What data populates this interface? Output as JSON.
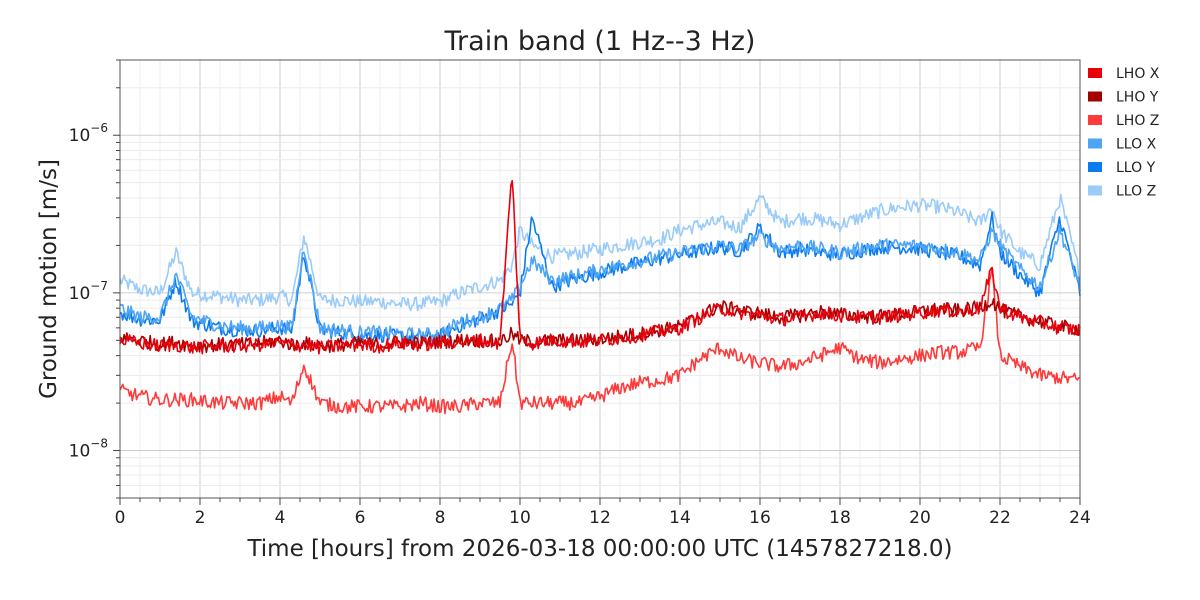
{
  "chart_data": {
    "type": "line",
    "title": "Train band (1 Hz--3 Hz)",
    "xlabel": "Time [hours] from 2026-03-18 00:00:00 UTC (1457827218.0)",
    "ylabel": "Ground motion [m/s]",
    "xlim": [
      0,
      24
    ],
    "ylim": [
      5e-09,
      3e-06
    ],
    "yscale": "log",
    "grid": true,
    "legend_position": "outside-right-top",
    "x_ticks": [
      "0",
      "2",
      "4",
      "6",
      "8",
      "10",
      "12",
      "14",
      "16",
      "18",
      "20",
      "22",
      "24"
    ],
    "y_ticks": [
      {
        "value": 1e-08,
        "base": "10",
        "exp": "−8"
      },
      {
        "value": 1e-07,
        "base": "10",
        "exp": "−7"
      },
      {
        "value": 1e-06,
        "base": "10",
        "exp": "−6"
      }
    ],
    "x": [
      0,
      0.5,
      1,
      1.4,
      1.8,
      2.5,
      3,
      3.5,
      4,
      4.3,
      4.6,
      5,
      5.5,
      6,
      6.5,
      7,
      7.5,
      8,
      8.5,
      9,
      9.5,
      9.8,
      10,
      10.3,
      10.8,
      11.5,
      12,
      12.5,
      13,
      13.5,
      14,
      14.5,
      15,
      15.5,
      16,
      16.5,
      17,
      17.5,
      18,
      18.5,
      19,
      19.5,
      20,
      20.5,
      21,
      21.5,
      21.8,
      22,
      22.5,
      23,
      23.5,
      24
    ],
    "series": [
      {
        "name": "LHO X",
        "color": "#e8000b",
        "values": [
          5e-08,
          4.8e-08,
          4.6e-08,
          4.7e-08,
          4.5e-08,
          4.6e-08,
          4.6e-08,
          4.7e-08,
          4.8e-08,
          4.6e-08,
          4.7e-08,
          4.5e-08,
          4.6e-08,
          4.7e-08,
          4.6e-08,
          4.8e-08,
          4.7e-08,
          4.8e-08,
          4.9e-08,
          5e-08,
          4.8e-08,
          6e-07,
          5e-08,
          4.8e-08,
          5e-08,
          4.9e-08,
          5e-08,
          5.2e-08,
          5.4e-08,
          5.7e-08,
          6e-08,
          7e-08,
          8e-08,
          7.5e-08,
          7.2e-08,
          6.8e-08,
          7e-08,
          7.5e-08,
          7.2e-08,
          7e-08,
          7e-08,
          7.2e-08,
          7.5e-08,
          7.8e-08,
          7.6e-08,
          8e-08,
          1.4e-07,
          8e-08,
          7e-08,
          6.5e-08,
          6e-08,
          5.8e-08
        ]
      },
      {
        "name": "LHO Y",
        "color": "#a50000",
        "values": [
          5.2e-08,
          5e-08,
          4.7e-08,
          4.9e-08,
          4.6e-08,
          4.7e-08,
          4.7e-08,
          4.8e-08,
          5e-08,
          4.7e-08,
          4.8e-08,
          4.6e-08,
          4.7e-08,
          4.8e-08,
          4.7e-08,
          4.9e-08,
          4.8e-08,
          4.9e-08,
          5e-08,
          5e-08,
          4.9e-08,
          5.5e-08,
          5e-08,
          4.9e-08,
          5e-08,
          5e-08,
          5.1e-08,
          5.3e-08,
          5.5e-08,
          5.8e-08,
          6.1e-08,
          7.2e-08,
          8.2e-08,
          7.7e-08,
          7.4e-08,
          7e-08,
          7.2e-08,
          7.6e-08,
          7.3e-08,
          7.1e-08,
          7.1e-08,
          7.3e-08,
          7.6e-08,
          7.9e-08,
          7.7e-08,
          8.1e-08,
          9e-08,
          7.8e-08,
          7.1e-08,
          6.6e-08,
          6.1e-08,
          5.9e-08
        ]
      },
      {
        "name": "LHO Z",
        "color": "#ff3a3a",
        "values": [
          2.4e-08,
          2.2e-08,
          2.1e-08,
          2.1e-08,
          2.1e-08,
          2e-08,
          2e-08,
          2e-08,
          2.2e-08,
          2e-08,
          3.5e-08,
          2e-08,
          1.9e-08,
          1.9e-08,
          1.9e-08,
          1.9e-08,
          2e-08,
          1.9e-08,
          1.9e-08,
          2e-08,
          2e-08,
          5e-08,
          2e-08,
          2e-08,
          2e-08,
          2e-08,
          2.2e-08,
          2.5e-08,
          2.7e-08,
          2.8e-08,
          3e-08,
          3.8e-08,
          4.5e-08,
          3.8e-08,
          3.6e-08,
          3.4e-08,
          3.6e-08,
          4e-08,
          4.5e-08,
          3.8e-08,
          3.6e-08,
          3.8e-08,
          4e-08,
          4.2e-08,
          4.2e-08,
          4.5e-08,
          1.4e-07,
          4e-08,
          3.4e-08,
          3e-08,
          2.9e-08,
          2.8e-08
        ]
      },
      {
        "name": "LLO X",
        "color": "#4ea4f5",
        "values": [
          8e-08,
          7e-08,
          7e-08,
          1.3e-07,
          7e-08,
          6.2e-08,
          6e-08,
          6e-08,
          6.2e-08,
          6e-08,
          2e-07,
          6e-08,
          5.8e-08,
          5.6e-08,
          5.6e-08,
          5.5e-08,
          5.4e-08,
          5.5e-08,
          6.5e-08,
          7e-08,
          8e-08,
          9e-08,
          1.1e-07,
          1.6e-07,
          1.2e-07,
          1.3e-07,
          1.4e-07,
          1.5e-07,
          1.6e-07,
          1.7e-07,
          1.8e-07,
          1.9e-07,
          2e-07,
          1.9e-07,
          2.3e-07,
          1.9e-07,
          2e-07,
          1.9e-07,
          1.8e-07,
          1.9e-07,
          2e-07,
          2e-07,
          2e-07,
          1.9e-07,
          1.8e-07,
          1.6e-07,
          2.5e-07,
          2e-07,
          1.4e-07,
          1.1e-07,
          2.5e-07,
          1.1e-07
        ]
      },
      {
        "name": "LLO Y",
        "color": "#0a7cf0",
        "values": [
          7.5e-08,
          6.8e-08,
          6.7e-08,
          1.2e-07,
          6.6e-08,
          6e-08,
          5.8e-08,
          5.8e-08,
          6e-08,
          5.8e-08,
          1.8e-07,
          5.8e-08,
          5.6e-08,
          5.4e-08,
          5.4e-08,
          5.3e-08,
          5.2e-08,
          5.3e-08,
          6.2e-08,
          6.8e-08,
          7.8e-08,
          8.5e-08,
          1e-07,
          3e-07,
          1.1e-07,
          1.25e-07,
          1.35e-07,
          1.45e-07,
          1.55e-07,
          1.65e-07,
          1.75e-07,
          1.85e-07,
          1.95e-07,
          1.85e-07,
          2.6e-07,
          1.8e-07,
          1.9e-07,
          1.8e-07,
          1.75e-07,
          1.85e-07,
          1.95e-07,
          1.95e-07,
          1.9e-07,
          1.8e-07,
          1.7e-07,
          1.5e-07,
          3e-07,
          1.8e-07,
          1.3e-07,
          1e-07,
          3e-07,
          1e-07
        ]
      },
      {
        "name": "LLO Z",
        "color": "#9acbf9",
        "values": [
          1.2e-07,
          1.05e-07,
          1e-07,
          1.8e-07,
          1e-07,
          9.5e-08,
          9e-08,
          9e-08,
          9.5e-08,
          9e-08,
          2.3e-07,
          9e-08,
          9e-08,
          8.8e-08,
          8.8e-08,
          8.5e-08,
          8.5e-08,
          8.8e-08,
          1e-07,
          1.1e-07,
          1.2e-07,
          1.5e-07,
          2.5e-07,
          2e-07,
          1.7e-07,
          1.8e-07,
          1.9e-07,
          2e-07,
          2.1e-07,
          2.2e-07,
          2.5e-07,
          2.7e-07,
          2.8e-07,
          2.6e-07,
          4e-07,
          2.8e-07,
          3e-07,
          2.9e-07,
          2.7e-07,
          3e-07,
          3.3e-07,
          3.5e-07,
          3.6e-07,
          3.5e-07,
          3.2e-07,
          2.8e-07,
          3.5e-07,
          2.5e-07,
          1.8e-07,
          1.5e-07,
          4e-07,
          1.3e-07
        ]
      }
    ]
  }
}
